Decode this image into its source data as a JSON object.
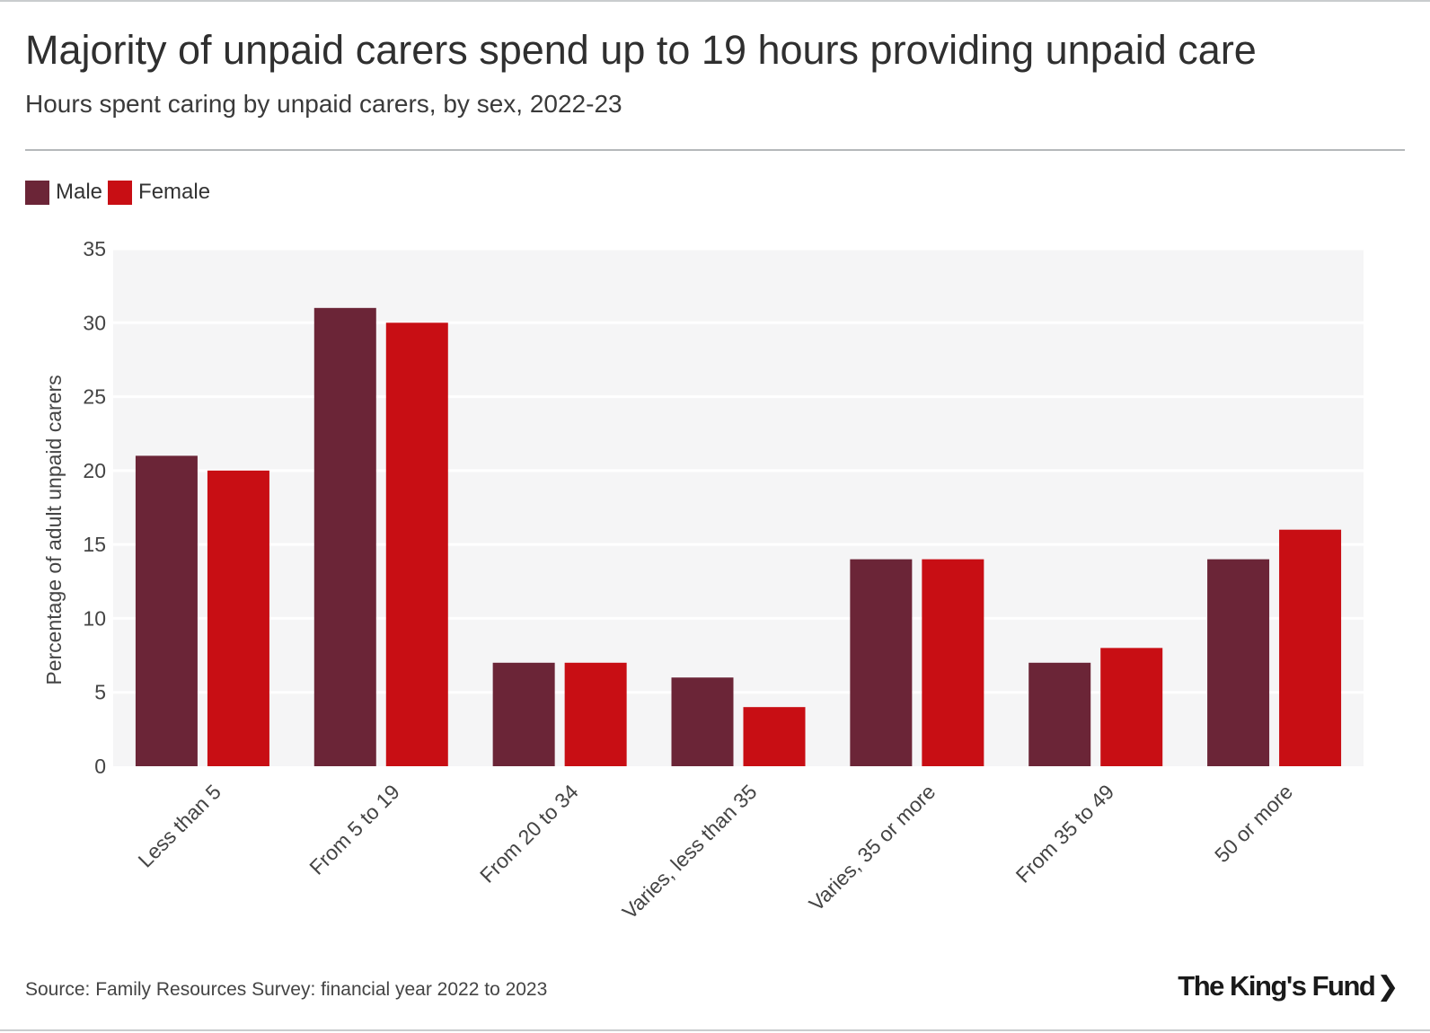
{
  "header": {
    "title": "Majority of unpaid carers spend up to 19 hours providing unpaid care",
    "subtitle": "Hours spent caring by unpaid carers, by sex, 2022-23"
  },
  "legend": [
    {
      "label": "Male",
      "color": "#6b2537"
    },
    {
      "label": "Female",
      "color": "#c80e14"
    }
  ],
  "footer": {
    "source": "Source: Family Resources Survey: financial year 2022 to 2023",
    "logo_text": "The King's Fund",
    "logo_icon": "chevron-right-icon"
  },
  "chart_data": {
    "type": "bar",
    "title": "Majority of unpaid carers spend up to 19 hours providing unpaid care",
    "subtitle": "Hours spent caring by unpaid carers, by sex, 2022-23",
    "xlabel": "",
    "ylabel": "Percentage of adult unpaid carers",
    "ylim": [
      0,
      35
    ],
    "yticks": [
      0,
      5,
      10,
      15,
      20,
      25,
      30,
      35
    ],
    "grid": true,
    "legend_position": "top-left",
    "categories": [
      "Less than 5",
      "From 5 to 19",
      "From 20 to 34",
      "Varies, less than 35",
      "Varies, 35 or more",
      "From 35 to 49",
      "50 or more"
    ],
    "series": [
      {
        "name": "Male",
        "color": "#6b2537",
        "values": [
          21,
          31,
          7,
          6,
          14,
          7,
          14
        ]
      },
      {
        "name": "Female",
        "color": "#c80e14",
        "values": [
          20,
          30,
          7,
          4,
          14,
          8,
          16
        ]
      }
    ],
    "plot_background": "#f5f5f6"
  }
}
